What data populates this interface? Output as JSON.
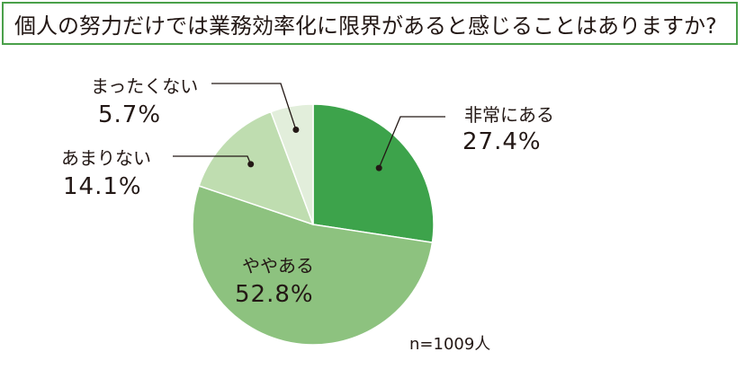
{
  "chart_data": {
    "type": "pie",
    "title": "個人の努力だけでは業務効率化に限界があると感じることはありますか?",
    "categories": [
      "非常にある",
      "ややある",
      "あまりない",
      "まったくない"
    ],
    "values": [
      27.4,
      52.8,
      14.1,
      5.7
    ],
    "value_labels": [
      "27.4%",
      "52.8%",
      "14.1%",
      "5.7%"
    ],
    "colors": [
      "#3da34b",
      "#8dc27f",
      "#bfddb0",
      "#e2eedb"
    ],
    "start": "12 o'clock",
    "direction": "clockwise",
    "note": "n=1009人"
  }
}
